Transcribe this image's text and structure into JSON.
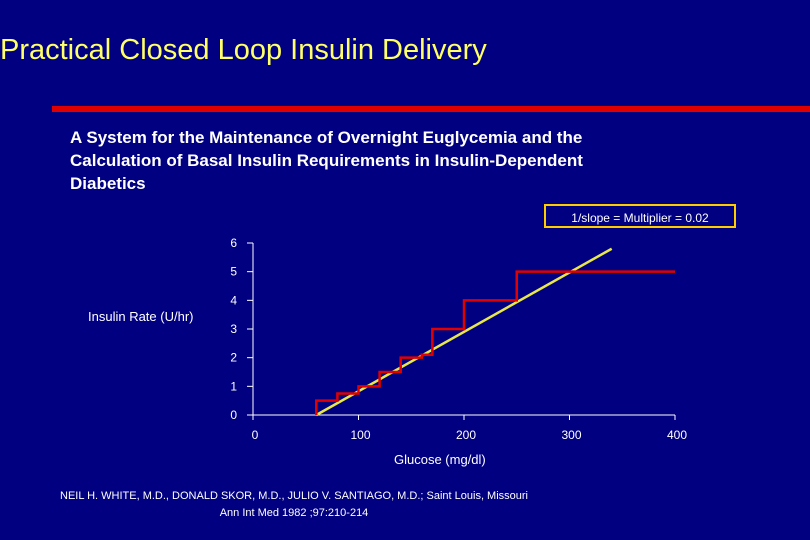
{
  "slide": {
    "title": "Practical Closed Loop Insulin Delivery",
    "subtitle_lines": [
      "A System for the Maintenance of Overnight Euglycemia and the",
      "Calculation of Basal Insulin Requirements in Insulin-Dependent",
      "Diabetics"
    ],
    "citation_lines": [
      "NEIL H. WHITE, M.D., DONALD SKOR, M.D., JULIO V. SANTIAGO, M.D.;  Saint Louis, Missouri",
      "Ann Int Med 1982 ;97:210-214"
    ]
  },
  "colors": {
    "background": "#000080",
    "title": "#ffff66",
    "rule": "#e00000",
    "step_line": "#e00000",
    "linear_line": "#e8e84a",
    "callout_border": "#ffcc00",
    "axis": "#ffffff"
  },
  "chart_data": {
    "type": "line",
    "title": "",
    "xlabel": "Glucose   (mg/dl)",
    "ylabel": "Insulin Rate  (U/hr)",
    "annotation": "1/slope = Multiplier =  0.02",
    "xlim": [
      0,
      400
    ],
    "ylim": [
      0,
      6
    ],
    "x_ticks": [
      "0",
      "100",
      "200",
      "300",
      "400"
    ],
    "y_ticks": [
      "0",
      "1",
      "2",
      "3",
      "4",
      "5",
      "6"
    ],
    "grid": false,
    "legend": "none",
    "series": [
      {
        "style": "step",
        "x": [
          60,
          60,
          80,
          80,
          100,
          100,
          120,
          120,
          140,
          140,
          160,
          160,
          170,
          170,
          200,
          200,
          250,
          250,
          400
        ],
        "y": [
          0,
          0.5,
          0.5,
          0.75,
          0.75,
          1,
          1,
          1.5,
          1.5,
          2,
          2,
          2.1,
          2.1,
          3,
          3,
          4,
          4,
          5,
          5
        ]
      },
      {
        "style": "linear",
        "x": [
          60,
          340
        ],
        "y": [
          0,
          5.8
        ]
      }
    ]
  }
}
